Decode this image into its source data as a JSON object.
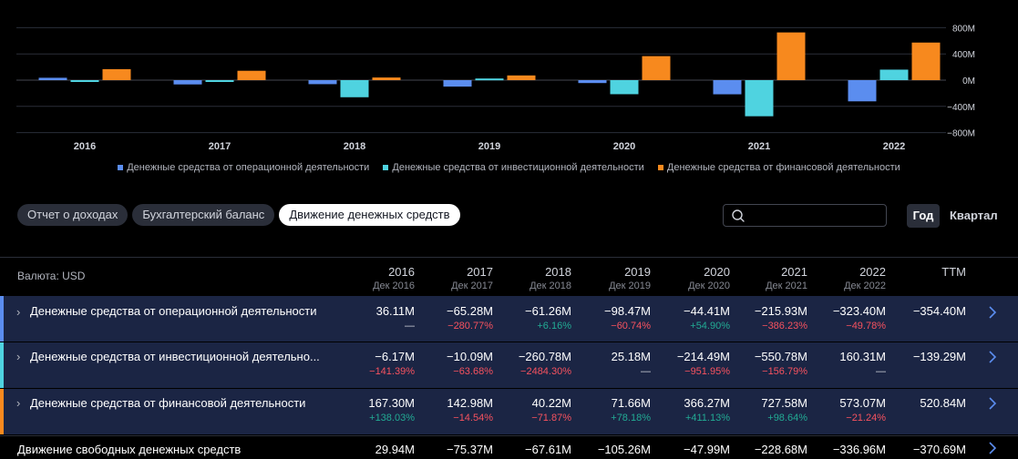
{
  "chart_data": {
    "type": "bar",
    "categories": [
      "2016",
      "2017",
      "2018",
      "2019",
      "2020",
      "2021",
      "2022"
    ],
    "series": [
      {
        "name": "Денежные средства от операционной деятельности",
        "color": "#5b8def",
        "values": [
          36.11,
          -65.28,
          -61.26,
          -98.47,
          -44.41,
          -215.93,
          -323.4
        ]
      },
      {
        "name": "Денежные средства от инвестиционной деятельности",
        "color": "#4fd3e0",
        "values": [
          -6.17,
          -10.09,
          -260.78,
          25.18,
          -214.49,
          -550.78,
          160.31
        ]
      },
      {
        "name": "Денежные средства от финансовой деятельности",
        "color": "#f7891e",
        "values": [
          167.3,
          142.98,
          40.22,
          71.66,
          366.27,
          727.58,
          573.07
        ]
      }
    ],
    "ylim": [
      -800,
      800
    ],
    "y_ticks": [
      800,
      400,
      0,
      -400,
      -800
    ],
    "y_tick_labels": [
      "800M",
      "400M",
      "0M",
      "−400M",
      "−800M"
    ],
    "unit": "M",
    "grid": true,
    "legend_position": "bottom"
  },
  "tabs": [
    {
      "label": "Отчет о доходах",
      "active": false
    },
    {
      "label": "Бухгалтерский баланс",
      "active": false
    },
    {
      "label": "Движение денежных средств",
      "active": true
    }
  ],
  "search": {
    "placeholder": "",
    "value": ""
  },
  "period": {
    "year": "Год",
    "quarter": "Квартал",
    "active": "Год"
  },
  "table": {
    "currency_label": "Валюта: USD",
    "columns": [
      {
        "year": "2016",
        "sub": "Дек 2016"
      },
      {
        "year": "2017",
        "sub": "Дек 2017"
      },
      {
        "year": "2018",
        "sub": "Дек 2018"
      },
      {
        "year": "2019",
        "sub": "Дек 2019"
      },
      {
        "year": "2020",
        "sub": "Дек 2020"
      },
      {
        "year": "2021",
        "sub": "Дек 2021"
      },
      {
        "year": "2022",
        "sub": "Дек 2022"
      },
      {
        "year": "TTM",
        "sub": ""
      }
    ],
    "rows": [
      {
        "label": "Денежные средства от операционной деятельности",
        "color": "#5b8def",
        "values": [
          "36.11M",
          "−65.28M",
          "−61.26M",
          "−98.47M",
          "−44.41M",
          "−215.93M",
          "−323.40M",
          "−354.40M"
        ],
        "changes": [
          "—",
          "−280.77%",
          "+6.16%",
          "−60.74%",
          "+54.90%",
          "−386.23%",
          "−49.78%",
          ""
        ]
      },
      {
        "label": "Денежные средства от инвестиционной деятельно...",
        "color": "#4fd3e0",
        "values": [
          "−6.17M",
          "−10.09M",
          "−260.78M",
          "25.18M",
          "−214.49M",
          "−550.78M",
          "160.31M",
          "−139.29M"
        ],
        "changes": [
          "−141.39%",
          "−63.68%",
          "−2484.30%",
          "—",
          "−951.95%",
          "−156.79%",
          "—",
          ""
        ]
      },
      {
        "label": "Денежные средства от финансовой деятельности",
        "color": "#f7891e",
        "values": [
          "167.30M",
          "142.98M",
          "40.22M",
          "71.66M",
          "366.27M",
          "727.58M",
          "573.07M",
          "520.84M"
        ],
        "changes": [
          "+138.03%",
          "−14.54%",
          "−71.87%",
          "+78.18%",
          "+411.13%",
          "+98.64%",
          "−21.24%",
          ""
        ]
      },
      {
        "label": "Движение свободных денежных средств",
        "color": "",
        "values": [
          "29.94M",
          "−75.37M",
          "−67.61M",
          "−105.26M",
          "−47.99M",
          "−228.68M",
          "−336.96M",
          "−370.69M"
        ],
        "changes": []
      }
    ]
  }
}
